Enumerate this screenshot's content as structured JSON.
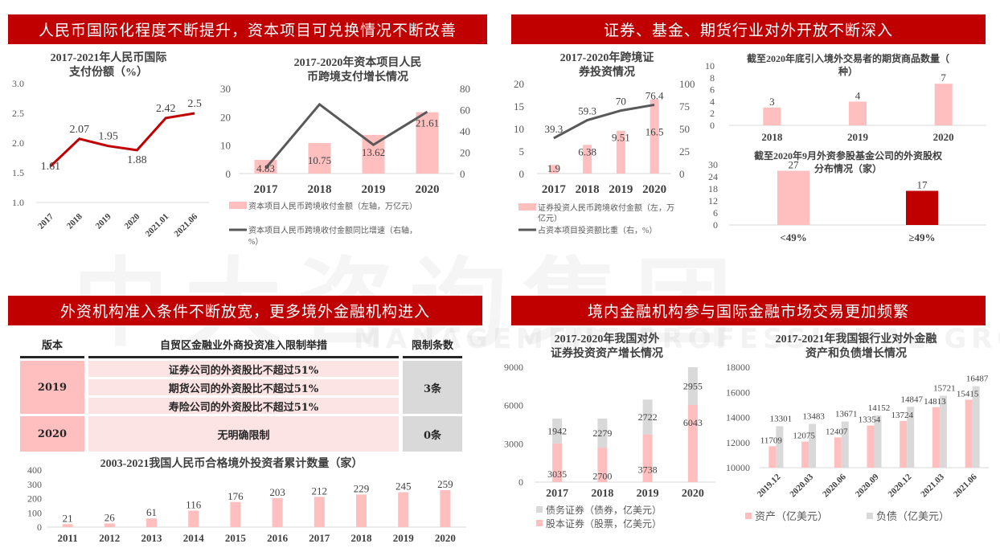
{
  "banners": {
    "top_left": "人民币国际化程度不断提升，资本项目可兑换情况不断改善",
    "top_right": "证券、基金、期货行业对外开放不断深入",
    "bottom_left": "外资机构准入条件不断放宽，更多境外金融机构进入",
    "bottom_right": "境内金融机构参与国际金融市场交易更加频繁"
  },
  "watermark": {
    "cn": "中大咨询集团",
    "en": "MANAGEMENT PROFESSIONAL GROUP"
  },
  "colors": {
    "red": "#c00000",
    "pink": "#ffbfbf",
    "gray": "#d9d9d9",
    "line_gray": "#595959"
  },
  "rules_table": {
    "headers": [
      "版本",
      "自贸区金融业外商投资准入限制举措",
      "限制条数"
    ],
    "rows": [
      {
        "version": "2019",
        "measures": [
          "证券公司的外资股比不超过51%",
          "期货公司的外资股比不超过51%",
          "寿险公司的外资股比不超过51%"
        ],
        "count": "3条"
      },
      {
        "version": "2020",
        "measures": [
          "无明确限制"
        ],
        "count": "0条"
      }
    ]
  },
  "chart_data": [
    {
      "id": "rmb_share",
      "type": "line",
      "title": "2017-2021年人民币国际支付份额（%）",
      "categories": [
        "2017",
        "2018",
        "2019",
        "2020",
        "2021.01",
        "2021.06"
      ],
      "values": [
        1.61,
        2.07,
        1.95,
        1.88,
        2.42,
        2.5
      ],
      "labels": [
        "1.61",
        "2.07",
        "1.95",
        "1.88",
        "2.42",
        "2.5"
      ],
      "yticks": [
        "1.0",
        "1.5",
        "2.0",
        "2.5",
        "3.0"
      ],
      "ylim": [
        1.0,
        3.0
      ]
    },
    {
      "id": "capital_account",
      "type": "bar",
      "title": "2017-2020年资本项目人民币跨境支付增长情况",
      "categories": [
        "2017",
        "2018",
        "2019",
        "2020"
      ],
      "series": [
        {
          "name": "资本项目人民币跨境收付金额（左轴，万亿元）",
          "type": "bar",
          "values": [
            4.83,
            10.75,
            13.62,
            21.61
          ]
        },
        {
          "name": "资本项目人民币跨境收付金额同比增速（右轴，%）",
          "type": "line",
          "values": [
            5,
            65,
            27,
            58
          ]
        }
      ],
      "yticks_left": [
        "0",
        "10",
        "20",
        "30"
      ],
      "ylim_left": [
        0,
        30
      ],
      "yticks_right": [
        "0",
        "20",
        "40",
        "60",
        "80"
      ],
      "ylim_right": [
        0,
        80
      ]
    },
    {
      "id": "cross_border_securities",
      "type": "bar",
      "title": "2017-2020年跨境证券投资情况",
      "categories": [
        "2017",
        "2018",
        "2019",
        "2020"
      ],
      "series": [
        {
          "name": "证券投资人民币跨境收付金额（左，万亿元）",
          "type": "bar",
          "values": [
            1.9,
            6.38,
            9.51,
            16.5
          ]
        },
        {
          "name": "占资本项目投资额比重（右，%）",
          "type": "line",
          "values": [
            39.3,
            59.3,
            70,
            76.4
          ]
        }
      ],
      "yticks_left": [
        "0",
        "5",
        "10",
        "15",
        "20"
      ],
      "ylim_left": [
        0,
        20
      ],
      "yticks_right": [
        "0",
        "25",
        "50",
        "75",
        "100"
      ],
      "ylim_right": [
        0,
        100
      ]
    },
    {
      "id": "futures_products",
      "type": "bar",
      "title": "截至2020年底引入境外交易者的期货商品数量（种）",
      "categories": [
        "2018",
        "2019",
        "2020"
      ],
      "values": [
        3,
        4,
        7
      ],
      "yticks": [
        "0",
        "2",
        "4",
        "6",
        "8",
        "10"
      ],
      "ylim": [
        0,
        10
      ]
    },
    {
      "id": "fund_equity",
      "type": "bar",
      "title": "截至2020年9月外资参股基金公司的外资股权分布情况（家）",
      "categories": [
        "<49%",
        "≥49%"
      ],
      "values": [
        27,
        17
      ],
      "yticks": [
        "0",
        "6",
        "12",
        "18",
        "24",
        "30"
      ],
      "ylim": [
        0,
        30
      ]
    },
    {
      "id": "rqfii",
      "type": "bar",
      "title": "2003-2021我国人民币合格境外投资者累计数量（家）",
      "categories": [
        "2011",
        "2012",
        "2013",
        "2014",
        "2015",
        "2016",
        "2017",
        "2018",
        "2019",
        "2020"
      ],
      "values": [
        21,
        26,
        61,
        116,
        176,
        203,
        212,
        229,
        245,
        259
      ],
      "yticks": [
        "0",
        "100",
        "200",
        "300",
        "400"
      ],
      "ylim": [
        0,
        400
      ]
    },
    {
      "id": "outward_securities",
      "type": "bar",
      "stacked": true,
      "title": "2017-2020年我国对外证券投资资产增长情况",
      "categories": [
        "2017",
        "2018",
        "2019",
        "2020"
      ],
      "series": [
        {
          "name": "股本证券（股票，亿美元）",
          "values": [
            3035,
            2700,
            3738,
            6043
          ]
        },
        {
          "name": "债务证券（债券，亿美元）",
          "values": [
            1942,
            2279,
            2722,
            2955
          ]
        }
      ],
      "yticks": [
        "0",
        "3000",
        "6000",
        "9000"
      ],
      "ylim": [
        0,
        9000
      ]
    },
    {
      "id": "bank_assets_liabilities",
      "type": "bar",
      "title": "2017-2021年我国银行业对外金融资产和负债增长情况",
      "categories": [
        "2019.12",
        "2020.03",
        "2020.06",
        "2020.09",
        "2020.12",
        "2021.03",
        "2021.06"
      ],
      "series": [
        {
          "name": "资产（亿美元）",
          "values": [
            11709,
            12075,
            12407,
            13354,
            13724,
            14813,
            15415
          ]
        },
        {
          "name": "负债（亿美元）",
          "values": [
            13301,
            13483,
            13671,
            14152,
            14847,
            15721,
            16487
          ]
        }
      ],
      "yticks": [
        "10000",
        "12000",
        "14000",
        "16000",
        "18000"
      ],
      "ylim": [
        10000,
        18000
      ]
    }
  ]
}
